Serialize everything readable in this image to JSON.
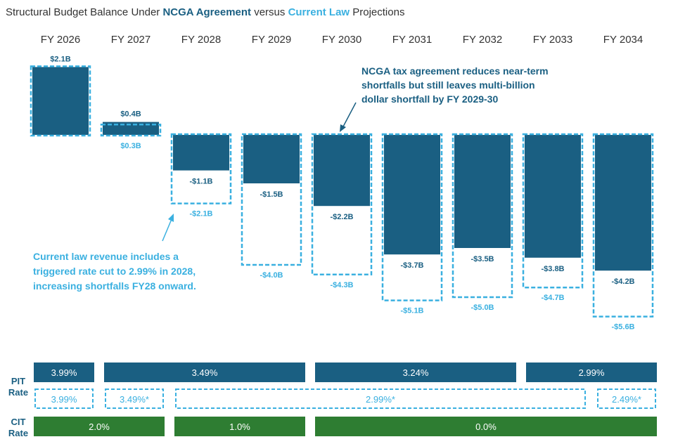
{
  "subtitle": {
    "prefix": "Structural Budget Balance Under ",
    "ncga": "NCGA Agreement",
    "middle": " versus ",
    "current": "Current Law",
    "suffix": " Projections"
  },
  "colors": {
    "ncga": "#1a5f82",
    "current_law": "#3ab0e0",
    "cit": "#2e7d32"
  },
  "chart_data": {
    "type": "bar",
    "title": "",
    "categories": [
      "FY 2026",
      "FY 2027",
      "FY 2028",
      "FY 2029",
      "FY 2030",
      "FY 2031",
      "FY 2032",
      "FY 2033",
      "FY 2034"
    ],
    "series": [
      {
        "name": "NCGA Agreement",
        "values": [
          2.1,
          0.4,
          -1.1,
          -1.5,
          -2.2,
          -3.7,
          -3.5,
          -3.8,
          -4.2
        ],
        "labels": [
          "$2.1B",
          "$0.4B",
          "-$1.1B",
          "-$1.5B",
          "-$2.2B",
          "-$3.7B",
          "-$3.5B",
          "-$3.8B",
          "-$4.2B"
        ]
      },
      {
        "name": "Current Law",
        "values": [
          2.1,
          0.3,
          -2.1,
          -4.0,
          -4.3,
          -5.1,
          -5.0,
          -4.7,
          -5.6
        ],
        "labels": [
          "",
          "$0.3B",
          "-$2.1B",
          "-$4.0B",
          "-$4.3B",
          "-$5.1B",
          "-$5.0B",
          "-$4.7B",
          "-$5.6B"
        ]
      }
    ],
    "annotations": {
      "ncga": [
        "NCGA tax agreement reduces near-term",
        "shortfalls but still leaves multi-billion",
        "dollar shortfall by FY 2029-30"
      ],
      "current": [
        "Current law revenue includes a",
        "triggered rate cut to 2.99% in 2028,",
        "increasing shortfalls FY28 onward."
      ]
    },
    "rate_rows": {
      "pit_label": [
        "PIT",
        "Rate"
      ],
      "cit_label": [
        "CIT",
        "Rate"
      ],
      "pit_ncga": [
        {
          "start": 0,
          "end": 0,
          "label": "3.99%"
        },
        {
          "start": 1,
          "end": 3,
          "label": "3.49%"
        },
        {
          "start": 4,
          "end": 6,
          "label": "3.24%"
        },
        {
          "start": 7,
          "end": 8,
          "label": "2.99%"
        }
      ],
      "pit_current": [
        {
          "start": 0,
          "end": 0,
          "label": "3.99%"
        },
        {
          "start": 1,
          "end": 1,
          "label": "3.49%*"
        },
        {
          "start": 2,
          "end": 7,
          "label": "2.99%*"
        },
        {
          "start": 8,
          "end": 8,
          "label": "2.49%*"
        }
      ],
      "cit": [
        {
          "start": 0,
          "end": 1,
          "label": "2.0%"
        },
        {
          "start": 2,
          "end": 3,
          "label": "1.0%"
        },
        {
          "start": 4,
          "end": 8,
          "label": "0.0%"
        }
      ]
    }
  }
}
